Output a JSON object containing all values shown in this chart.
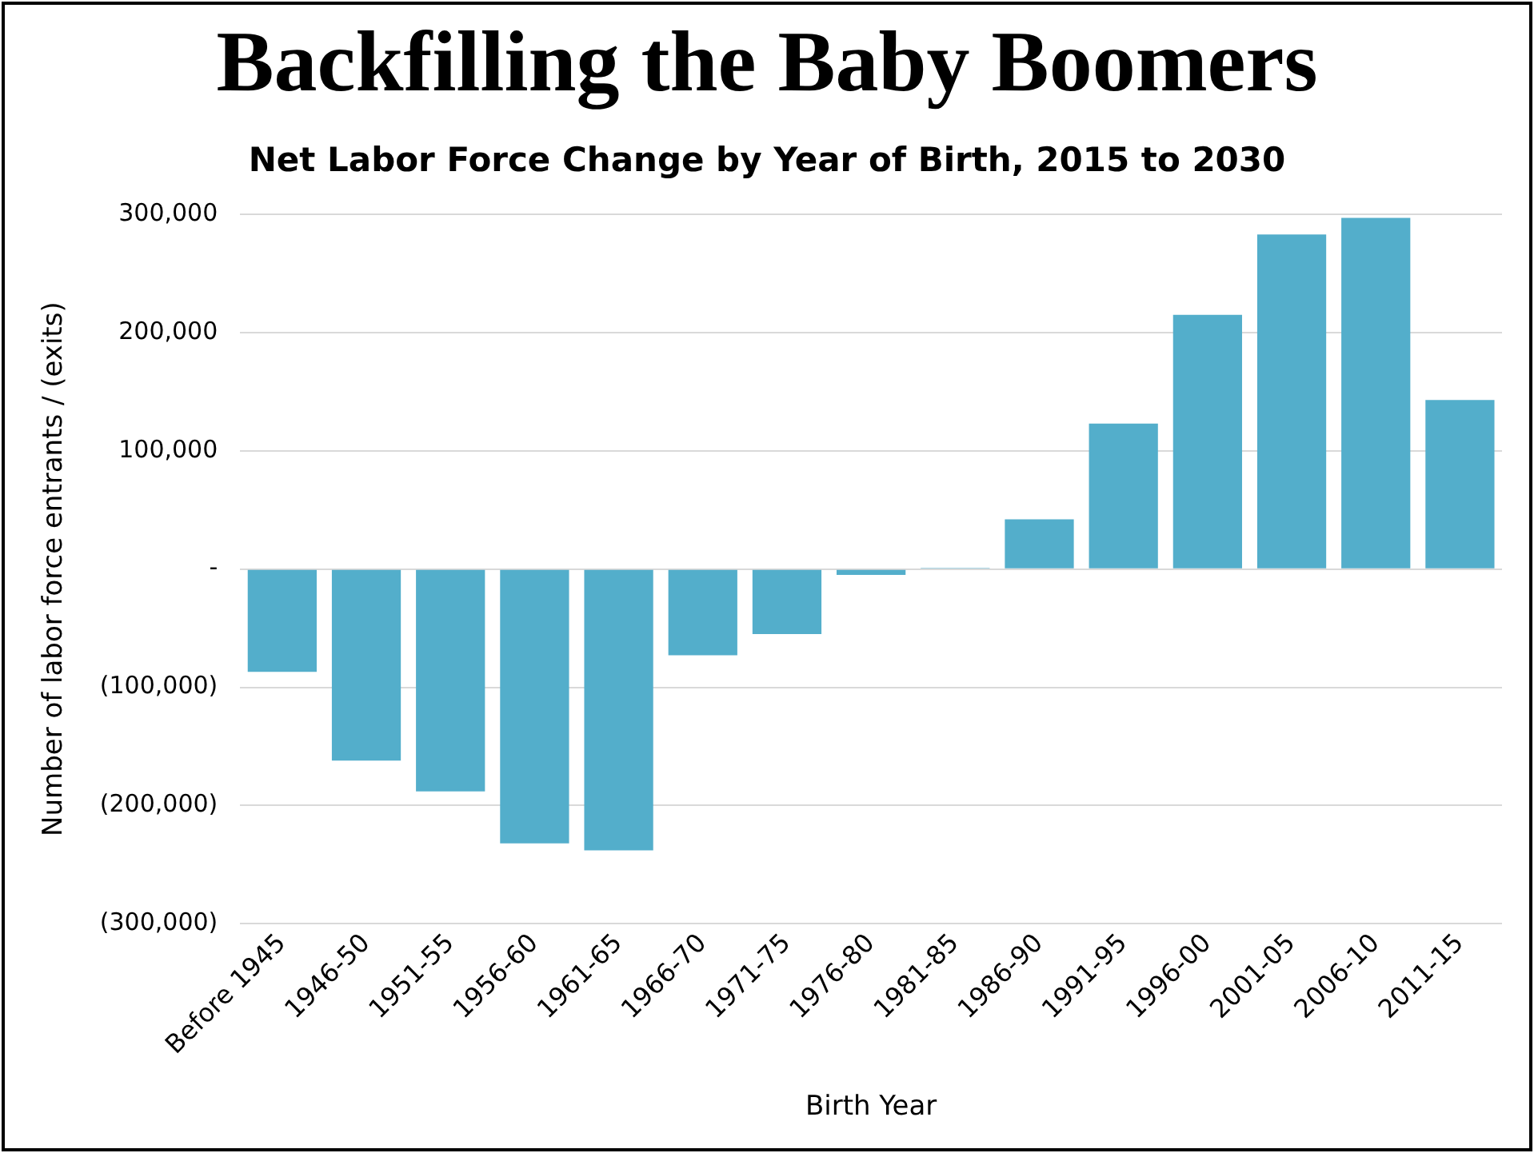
{
  "chart_data": {
    "type": "bar",
    "title": "Backfilling the Baby Boomers",
    "subtitle": "Net Labor Force Change by Year of Birth, 2015 to 2030",
    "xlabel": "Birth Year",
    "ylabel": "Number of labor force entrants / (exits)",
    "categories": [
      "Before 1945",
      "1946-50",
      "1951-55",
      "1956-60",
      "1961-65",
      "1966-70",
      "1971-75",
      "1976-80",
      "1981-85",
      "1986-90",
      "1991-95",
      "1996-00",
      "2001-05",
      "2006-10",
      "2011-15"
    ],
    "values": [
      -87000,
      -162000,
      -188000,
      -232000,
      -238000,
      -73000,
      -55000,
      -5000,
      1000,
      42000,
      123000,
      215000,
      283000,
      297000,
      143000
    ],
    "color": "#53aecb",
    "ylim": [
      -300000,
      300000
    ],
    "yticks": [
      {
        "value": 300000,
        "label": "300,000"
      },
      {
        "value": 200000,
        "label": "200,000"
      },
      {
        "value": 100000,
        "label": "100,000"
      },
      {
        "value": 0,
        "label": "-"
      },
      {
        "value": -100000,
        "label": "(100,000)"
      },
      {
        "value": -200000,
        "label": "(200,000)"
      },
      {
        "value": -300000,
        "label": "(300,000)"
      }
    ],
    "grid": "y",
    "legend": false
  }
}
